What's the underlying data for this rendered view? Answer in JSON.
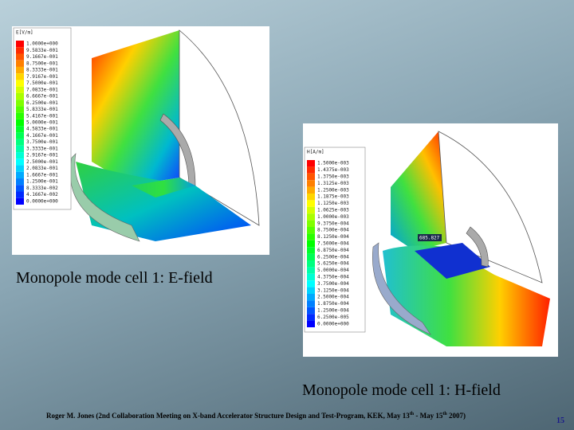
{
  "slide": {
    "e_field": {
      "legend_title": "E[V/m]",
      "legend_labels": [
        "1.0000e+000",
        "9.5833e-001",
        "9.1667e-001",
        "8.7500e-001",
        "8.3333e-001",
        "7.9167e-001",
        "7.5000e-001",
        "7.0833e-001",
        "6.6667e-001",
        "6.2500e-001",
        "5.8333e-001",
        "5.4167e-001",
        "5.0000e-001",
        "4.5833e-001",
        "4.1667e-001",
        "3.7500e-001",
        "3.3333e-001",
        "2.9167e-001",
        "2.5000e-001",
        "2.0833e-001",
        "1.6667e-001",
        "1.2500e-001",
        "8.3333e-002",
        "4.1667e-002",
        "0.0000e+000"
      ],
      "caption": "Monopole mode cell 1: E-field"
    },
    "h_field": {
      "legend_title": "H[A/m]",
      "legend_labels": [
        "1.5000e-003",
        "1.4375e-003",
        "1.3750e-003",
        "1.3125e-003",
        "1.2500e-003",
        "1.1875e-003",
        "1.1250e-003",
        "1.0625e-003",
        "1.0000e-003",
        "9.3750e-004",
        "8.7500e-004",
        "8.1250e-004",
        "7.5000e-004",
        "6.8750e-004",
        "6.2500e-004",
        "5.6250e-004",
        "5.0000e-004",
        "4.3750e-004",
        "3.7500e-004",
        "3.1250e-004",
        "2.5000e-004",
        "1.8750e-004",
        "1.2500e-004",
        "6.2500e-005",
        "0.0000e+000"
      ],
      "probe_label": "685.827",
      "caption": "Monopole mode cell 1: H-field"
    },
    "footer": {
      "parts": [
        "Roger M. Jones (2nd Collaboration Meeting on X-band Accelerator Structure Design and Test-Program, KEK, May 13",
        "th",
        " - May 15",
        "th",
        " 2007)"
      ]
    },
    "page_number": "15"
  }
}
